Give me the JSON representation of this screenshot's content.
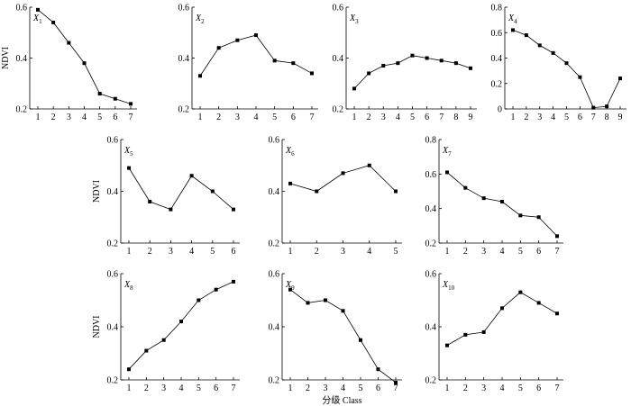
{
  "figure": {
    "shared_ylabel": "NDVI",
    "shared_xlabel": "分级 Class"
  },
  "chart_data": [
    {
      "type": "line",
      "panel_label": {
        "var": "X",
        "sub": "1"
      },
      "x": [
        1,
        2,
        3,
        4,
        5,
        6,
        7
      ],
      "y": [
        0.59,
        0.54,
        0.46,
        0.38,
        0.26,
        0.24,
        0.22
      ],
      "ylim": [
        0.2,
        0.6
      ],
      "yticks": [
        "0.2",
        "0.4",
        "0.6"
      ],
      "show_ylabel": true,
      "show_xlabel": false
    },
    {
      "type": "line",
      "panel_label": {
        "var": "X",
        "sub": "2"
      },
      "x": [
        1,
        2,
        3,
        4,
        5,
        6,
        7
      ],
      "y": [
        0.33,
        0.44,
        0.47,
        0.49,
        0.39,
        0.38,
        0.34
      ],
      "ylim": [
        0.2,
        0.6
      ],
      "yticks": [
        "0.2",
        "0.4",
        "0.6"
      ],
      "show_ylabel": false,
      "show_xlabel": false
    },
    {
      "type": "line",
      "panel_label": {
        "var": "X",
        "sub": "3"
      },
      "x": [
        1,
        2,
        3,
        4,
        5,
        6,
        7,
        8,
        9
      ],
      "y": [
        0.28,
        0.34,
        0.37,
        0.38,
        0.41,
        0.4,
        0.39,
        0.38,
        0.36
      ],
      "ylim": [
        0.2,
        0.6
      ],
      "yticks": [
        "0.2",
        "0.4",
        "0.6"
      ],
      "show_ylabel": false,
      "show_xlabel": false
    },
    {
      "type": "line",
      "panel_label": {
        "var": "X",
        "sub": "4"
      },
      "x": [
        1,
        2,
        3,
        4,
        5,
        6,
        7,
        8,
        9
      ],
      "y": [
        0.62,
        0.58,
        0.5,
        0.44,
        0.36,
        0.25,
        0.01,
        0.02,
        0.24
      ],
      "ylim": [
        0,
        0.8
      ],
      "yticks": [
        "0",
        "0.2",
        "0.4",
        "0.6",
        "0.8"
      ],
      "show_ylabel": false,
      "show_xlabel": false
    },
    {
      "type": "line",
      "panel_label": {
        "var": "X",
        "sub": "5"
      },
      "x": [
        1,
        2,
        3,
        4,
        5,
        6
      ],
      "y": [
        0.49,
        0.36,
        0.33,
        0.46,
        0.4,
        0.33
      ],
      "ylim": [
        0.2,
        0.6
      ],
      "yticks": [
        "0.2",
        "0.4",
        "0.6"
      ],
      "show_ylabel": true,
      "show_xlabel": false
    },
    {
      "type": "line",
      "panel_label": {
        "var": "X",
        "sub": "6"
      },
      "x": [
        1,
        2,
        3,
        4,
        5
      ],
      "y": [
        0.43,
        0.4,
        0.47,
        0.5,
        0.4
      ],
      "ylim": [
        0.2,
        0.6
      ],
      "yticks": [
        "0.2",
        "0.4",
        "0.6"
      ],
      "show_ylabel": false,
      "show_xlabel": false
    },
    {
      "type": "line",
      "panel_label": {
        "var": "X",
        "sub": "7"
      },
      "x": [
        1,
        2,
        3,
        4,
        5,
        6,
        7
      ],
      "y": [
        0.61,
        0.52,
        0.46,
        0.44,
        0.36,
        0.35,
        0.24
      ],
      "ylim": [
        0.2,
        0.8
      ],
      "yticks": [
        "0.2",
        "0.4",
        "0.6",
        "0.8"
      ],
      "show_ylabel": false,
      "show_xlabel": false
    },
    {
      "type": "line",
      "panel_label": {
        "var": "X",
        "sub": "8"
      },
      "x": [
        1,
        2,
        3,
        4,
        5,
        6,
        7
      ],
      "y": [
        0.24,
        0.31,
        0.35,
        0.42,
        0.5,
        0.54,
        0.57
      ],
      "ylim": [
        0.2,
        0.6
      ],
      "yticks": [
        "0.2",
        "0.4",
        "0.6"
      ],
      "show_ylabel": true,
      "show_xlabel": false
    },
    {
      "type": "line",
      "panel_label": {
        "var": "X",
        "sub": "9"
      },
      "x": [
        1,
        2,
        3,
        4,
        5,
        6,
        7
      ],
      "y": [
        0.54,
        0.49,
        0.5,
        0.46,
        0.35,
        0.24,
        0.19
      ],
      "ylim": [
        0.2,
        0.6
      ],
      "yticks": [
        "0.2",
        "0.4",
        "0.6"
      ],
      "show_ylabel": false,
      "show_xlabel": true
    },
    {
      "type": "line",
      "panel_label": {
        "var": "X",
        "sub": "10"
      },
      "x": [
        1,
        2,
        3,
        4,
        5,
        6,
        7
      ],
      "y": [
        0.33,
        0.37,
        0.38,
        0.47,
        0.53,
        0.49,
        0.45
      ],
      "ylim": [
        0.2,
        0.6
      ],
      "yticks": [
        "0.2",
        "0.4",
        "0.6"
      ],
      "show_ylabel": false,
      "show_xlabel": false
    }
  ]
}
